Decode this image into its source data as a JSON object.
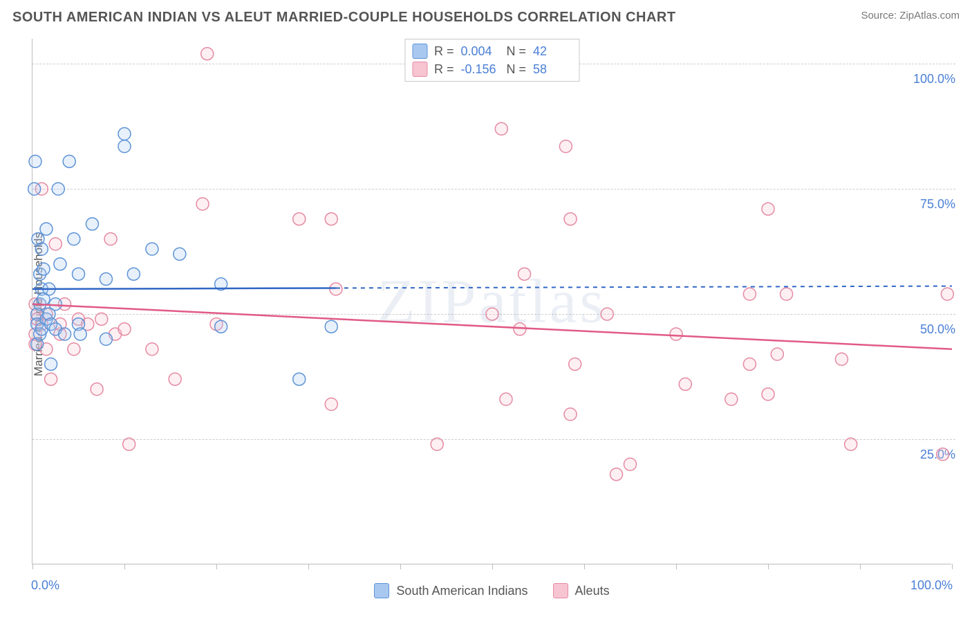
{
  "title": "SOUTH AMERICAN INDIAN VS ALEUT MARRIED-COUPLE HOUSEHOLDS CORRELATION CHART",
  "source": "Source: ZipAtlas.com",
  "y_axis_label": "Married-couple Households",
  "watermark": "ZIPatlas",
  "chart": {
    "type": "scatter",
    "background_color": "#ffffff",
    "grid_color": "#cccccc",
    "axis_color": "#bcbcbc",
    "tick_label_color": "#4a7fd6",
    "tick_label_fontsize": 18,
    "title_color": "#555555",
    "title_fontsize": 20,
    "xlim": [
      0,
      100
    ],
    "ylim": [
      0,
      105
    ],
    "y_gridlines": [
      25,
      50,
      75,
      100
    ],
    "y_grid_labels": [
      "25.0%",
      "50.0%",
      "75.0%",
      "100.0%"
    ],
    "x_ticks": [
      0,
      10,
      20,
      30,
      40,
      50,
      60,
      70,
      80,
      90,
      100
    ],
    "x_tick_labels_shown": {
      "0": "0.0%",
      "100": "100.0%"
    },
    "marker_radius": 9,
    "marker_stroke_width": 1.5,
    "marker_fill_opacity": 0.28,
    "trendline_width": 2.5,
    "trendline_dash_width": 2,
    "series": [
      {
        "name": "South American Indians",
        "color_fill": "#a9c8f0",
        "color_stroke": "#5e93d6",
        "line_color": "#2f66c4",
        "R": "0.004",
        "N": "42",
        "trendline": {
          "x1": 0,
          "y1": 55.0,
          "x2": 33,
          "y2": 55.2,
          "dash_x2": 100,
          "dash_y2": 55.6
        },
        "points": [
          {
            "x": 0.2,
            "y": 75
          },
          {
            "x": 0.3,
            "y": 80.5
          },
          {
            "x": 0.5,
            "y": 50
          },
          {
            "x": 0.5,
            "y": 48
          },
          {
            "x": 0.5,
            "y": 44
          },
          {
            "x": 0.6,
            "y": 65
          },
          {
            "x": 0.8,
            "y": 46
          },
          {
            "x": 0.8,
            "y": 52
          },
          {
            "x": 0.8,
            "y": 58
          },
          {
            "x": 1.0,
            "y": 47
          },
          {
            "x": 1.0,
            "y": 63
          },
          {
            "x": 1.0,
            "y": 55
          },
          {
            "x": 1.2,
            "y": 59
          },
          {
            "x": 1.2,
            "y": 53
          },
          {
            "x": 1.5,
            "y": 49
          },
          {
            "x": 1.5,
            "y": 67
          },
          {
            "x": 1.8,
            "y": 50
          },
          {
            "x": 1.8,
            "y": 55
          },
          {
            "x": 2.0,
            "y": 40
          },
          {
            "x": 2.0,
            "y": 48
          },
          {
            "x": 2.5,
            "y": 47
          },
          {
            "x": 2.5,
            "y": 52
          },
          {
            "x": 2.8,
            "y": 75
          },
          {
            "x": 3.0,
            "y": 60
          },
          {
            "x": 3.5,
            "y": 46
          },
          {
            "x": 4.0,
            "y": 80.5
          },
          {
            "x": 4.5,
            "y": 65
          },
          {
            "x": 5.0,
            "y": 58
          },
          {
            "x": 5.0,
            "y": 48
          },
          {
            "x": 5.2,
            "y": 46
          },
          {
            "x": 6.5,
            "y": 68
          },
          {
            "x": 8.0,
            "y": 57
          },
          {
            "x": 8.0,
            "y": 45
          },
          {
            "x": 10.0,
            "y": 86
          },
          {
            "x": 10.0,
            "y": 83.5
          },
          {
            "x": 11.0,
            "y": 58
          },
          {
            "x": 13.0,
            "y": 63
          },
          {
            "x": 16.0,
            "y": 62
          },
          {
            "x": 20.5,
            "y": 47.5
          },
          {
            "x": 20.5,
            "y": 56
          },
          {
            "x": 29.0,
            "y": 37
          },
          {
            "x": 32.5,
            "y": 47.5
          }
        ]
      },
      {
        "name": "Aleuts",
        "color_fill": "#f7c4d1",
        "color_stroke": "#e58aa2",
        "line_color": "#e15a86",
        "R": "-0.156",
        "N": "58",
        "trendline": {
          "x1": 0,
          "y1": 52.0,
          "x2": 100,
          "y2": 43.0
        },
        "points": [
          {
            "x": 0.3,
            "y": 52
          },
          {
            "x": 0.3,
            "y": 44
          },
          {
            "x": 0.3,
            "y": 46
          },
          {
            "x": 0.5,
            "y": 50
          },
          {
            "x": 0.5,
            "y": 49
          },
          {
            "x": 1.0,
            "y": 75
          },
          {
            "x": 1.0,
            "y": 48
          },
          {
            "x": 1.5,
            "y": 43
          },
          {
            "x": 1.5,
            "y": 50
          },
          {
            "x": 2.0,
            "y": 37
          },
          {
            "x": 2.5,
            "y": 64
          },
          {
            "x": 3.0,
            "y": 46
          },
          {
            "x": 3.0,
            "y": 48
          },
          {
            "x": 3.5,
            "y": 52
          },
          {
            "x": 4.5,
            "y": 43
          },
          {
            "x": 5.0,
            "y": 49
          },
          {
            "x": 6.0,
            "y": 48
          },
          {
            "x": 7.0,
            "y": 35
          },
          {
            "x": 7.5,
            "y": 49
          },
          {
            "x": 8.5,
            "y": 65
          },
          {
            "x": 9.0,
            "y": 46
          },
          {
            "x": 10.0,
            "y": 47
          },
          {
            "x": 10.5,
            "y": 24
          },
          {
            "x": 13.0,
            "y": 43
          },
          {
            "x": 15.5,
            "y": 37
          },
          {
            "x": 18.5,
            "y": 72
          },
          {
            "x": 19.0,
            "y": 102
          },
          {
            "x": 20.0,
            "y": 48
          },
          {
            "x": 29.0,
            "y": 69
          },
          {
            "x": 32.5,
            "y": 69
          },
          {
            "x": 32.5,
            "y": 32
          },
          {
            "x": 33.0,
            "y": 55
          },
          {
            "x": 44.0,
            "y": 24
          },
          {
            "x": 50.0,
            "y": 50
          },
          {
            "x": 51.0,
            "y": 87
          },
          {
            "x": 51.5,
            "y": 33
          },
          {
            "x": 53.0,
            "y": 47
          },
          {
            "x": 53.5,
            "y": 58
          },
          {
            "x": 58.0,
            "y": 83.5
          },
          {
            "x": 58.5,
            "y": 69
          },
          {
            "x": 58.5,
            "y": 30
          },
          {
            "x": 59.0,
            "y": 40
          },
          {
            "x": 63.5,
            "y": 18
          },
          {
            "x": 62.5,
            "y": 50
          },
          {
            "x": 65.0,
            "y": 20
          },
          {
            "x": 70.0,
            "y": 46
          },
          {
            "x": 71.0,
            "y": 36
          },
          {
            "x": 76.0,
            "y": 33
          },
          {
            "x": 78.0,
            "y": 40
          },
          {
            "x": 78.0,
            "y": 54
          },
          {
            "x": 80.0,
            "y": 34
          },
          {
            "x": 80.0,
            "y": 71
          },
          {
            "x": 81.0,
            "y": 42
          },
          {
            "x": 82.0,
            "y": 54
          },
          {
            "x": 88.0,
            "y": 41
          },
          {
            "x": 89.0,
            "y": 24
          },
          {
            "x": 99.0,
            "y": 22
          },
          {
            "x": 99.5,
            "y": 54
          }
        ]
      }
    ]
  },
  "legend_top": {
    "r_label": "R =",
    "n_label": "N ="
  },
  "legend_bottom": [
    {
      "label": "South American Indians",
      "fill": "#a9c8f0",
      "stroke": "#5e93d6"
    },
    {
      "label": "Aleuts",
      "fill": "#f7c4d1",
      "stroke": "#e58aa2"
    }
  ]
}
